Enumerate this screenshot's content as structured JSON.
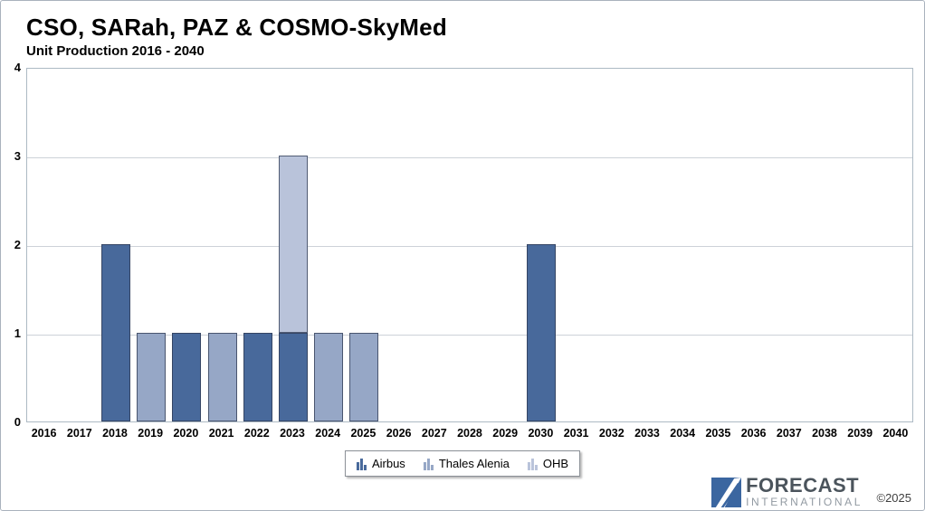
{
  "header": {
    "title": "CSO, SARah, PAZ & COSMO-SkyMed",
    "subtitle": "Unit Production 2016 - 2040"
  },
  "chart_data": {
    "type": "bar",
    "stacked": true,
    "title": "CSO, SARah, PAZ & COSMO-SkyMed",
    "subtitle": "Unit Production 2016 - 2040",
    "xlabel": "",
    "ylabel": "",
    "ylim": [
      0,
      4
    ],
    "yticks": [
      0,
      1,
      2,
      3,
      4
    ],
    "grid": true,
    "legend_position": "bottom-center",
    "categories": [
      "2016",
      "2017",
      "2018",
      "2019",
      "2020",
      "2021",
      "2022",
      "2023",
      "2024",
      "2025",
      "2026",
      "2027",
      "2028",
      "2029",
      "2030",
      "2031",
      "2032",
      "2033",
      "2034",
      "2035",
      "2036",
      "2037",
      "2038",
      "2039",
      "2040"
    ],
    "series": [
      {
        "name": "Airbus",
        "color": "#48699b",
        "values": [
          0,
          0,
          2,
          0,
          1,
          0,
          1,
          1,
          0,
          0,
          0,
          0,
          0,
          0,
          2,
          0,
          0,
          0,
          0,
          0,
          0,
          0,
          0,
          0,
          0
        ]
      },
      {
        "name": "Thales Alenia",
        "color": "#96a7c6",
        "values": [
          0,
          0,
          0,
          1,
          0,
          1,
          0,
          0,
          1,
          1,
          0,
          0,
          0,
          0,
          0,
          0,
          0,
          0,
          0,
          0,
          0,
          0,
          0,
          0,
          0
        ]
      },
      {
        "name": "OHB",
        "color": "#b9c3da",
        "values": [
          0,
          0,
          0,
          0,
          0,
          0,
          0,
          2,
          0,
          0,
          0,
          0,
          0,
          0,
          0,
          0,
          0,
          0,
          0,
          0,
          0,
          0,
          0,
          0,
          0
        ]
      }
    ]
  },
  "colors": {
    "bar_border": "#2f3a52",
    "gridline": "#cdd2d8",
    "plot_border": "#adbac4",
    "logo_blue": "#3b66a0"
  },
  "branding": {
    "logo_line1": "FORECAST",
    "logo_line2": "INTERNATIONAL",
    "copyright": "©2025"
  }
}
